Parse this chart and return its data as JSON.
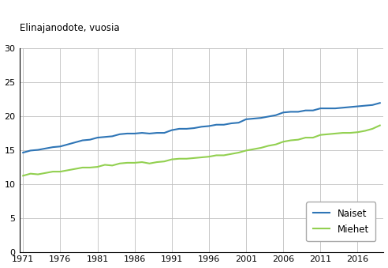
{
  "title": "Elinajanodote, vuosia",
  "years": [
    1971,
    1972,
    1973,
    1974,
    1975,
    1976,
    1977,
    1978,
    1979,
    1980,
    1981,
    1982,
    1983,
    1984,
    1985,
    1986,
    1987,
    1988,
    1989,
    1990,
    1991,
    1992,
    1993,
    1994,
    1995,
    1996,
    1997,
    1998,
    1999,
    2000,
    2001,
    2002,
    2003,
    2004,
    2005,
    2006,
    2007,
    2008,
    2009,
    2010,
    2011,
    2012,
    2013,
    2014,
    2015,
    2016,
    2017,
    2018,
    2019
  ],
  "naiset": [
    14.6,
    14.9,
    15.0,
    15.2,
    15.4,
    15.5,
    15.8,
    16.1,
    16.4,
    16.5,
    16.8,
    16.9,
    17.0,
    17.3,
    17.4,
    17.4,
    17.5,
    17.4,
    17.5,
    17.5,
    17.9,
    18.1,
    18.1,
    18.2,
    18.4,
    18.5,
    18.7,
    18.7,
    18.9,
    19.0,
    19.5,
    19.6,
    19.7,
    19.9,
    20.1,
    20.5,
    20.6,
    20.6,
    20.8,
    20.8,
    21.1,
    21.1,
    21.1,
    21.2,
    21.3,
    21.4,
    21.5,
    21.6,
    21.9
  ],
  "miehet": [
    11.2,
    11.5,
    11.4,
    11.6,
    11.8,
    11.8,
    12.0,
    12.2,
    12.4,
    12.4,
    12.5,
    12.8,
    12.7,
    13.0,
    13.1,
    13.1,
    13.2,
    13.0,
    13.2,
    13.3,
    13.6,
    13.7,
    13.7,
    13.8,
    13.9,
    14.0,
    14.2,
    14.2,
    14.4,
    14.6,
    14.9,
    15.1,
    15.3,
    15.6,
    15.8,
    16.2,
    16.4,
    16.5,
    16.8,
    16.8,
    17.2,
    17.3,
    17.4,
    17.5,
    17.5,
    17.6,
    17.8,
    18.1,
    18.6
  ],
  "naiset_color": "#2e75b6",
  "miehet_color": "#92d050",
  "line_width": 1.5,
  "ylim": [
    0,
    30
  ],
  "yticks": [
    0,
    5,
    10,
    15,
    20,
    25,
    30
  ],
  "xlim_min": 1971,
  "xlim_max": 2019,
  "xticks": [
    1971,
    1976,
    1981,
    1986,
    1991,
    1996,
    2001,
    2006,
    2011,
    2016
  ],
  "legend_naiset": "Naiset",
  "legend_miehet": "Miehet",
  "background_color": "#ffffff",
  "grid_color": "#bfbfbf"
}
